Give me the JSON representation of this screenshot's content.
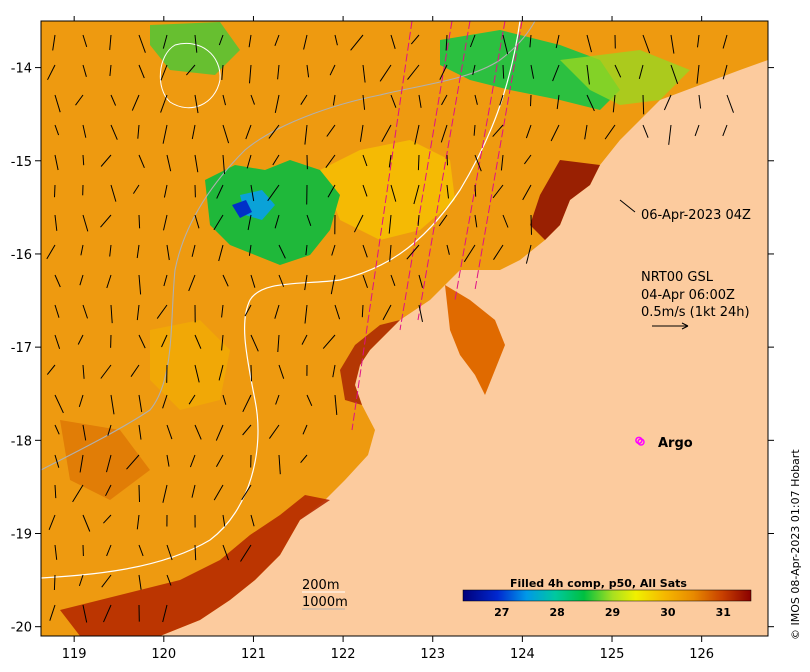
{
  "axes": {
    "x_ticks": [
      "119",
      "120",
      "121",
      "122",
      "123",
      "124",
      "125",
      "126"
    ],
    "y_ticks": [
      "-14",
      "-15",
      "-16",
      "-17",
      "-18",
      "-19",
      "-20"
    ],
    "x_values": [
      119,
      120,
      121,
      122,
      123,
      124,
      125,
      126
    ],
    "y_values": [
      -14,
      -15,
      -16,
      -17,
      -18,
      -19,
      -20
    ],
    "xlim": [
      118.63,
      126.74
    ],
    "ylim": [
      -20.1,
      -13.5
    ]
  },
  "annotations": {
    "pass_time": "06-Apr-2023 04Z",
    "current_model": "NRT00 GSL",
    "current_time": "04-Apr 06:00Z",
    "current_scale": "0.5m/s (1kt 24h)",
    "argo_label": "Argo",
    "contour_200": "200m",
    "contour_1000": "1000m",
    "credit": "© IMOS 08-Apr-2023 01:07 Hobart"
  },
  "colorbar": {
    "title": "Filled 4h comp, p50, All Sats",
    "ticks": [
      "27",
      "28",
      "29",
      "30",
      "31"
    ],
    "tick_values": [
      27,
      28,
      29,
      30,
      31
    ],
    "range": [
      26.3,
      31.5
    ]
  },
  "colors": {
    "land": "#fccb9e",
    "argo": "#ff00ff",
    "track": "#dd1188"
  },
  "argo_float": {
    "lon": 125.3,
    "lat": -18.0
  }
}
